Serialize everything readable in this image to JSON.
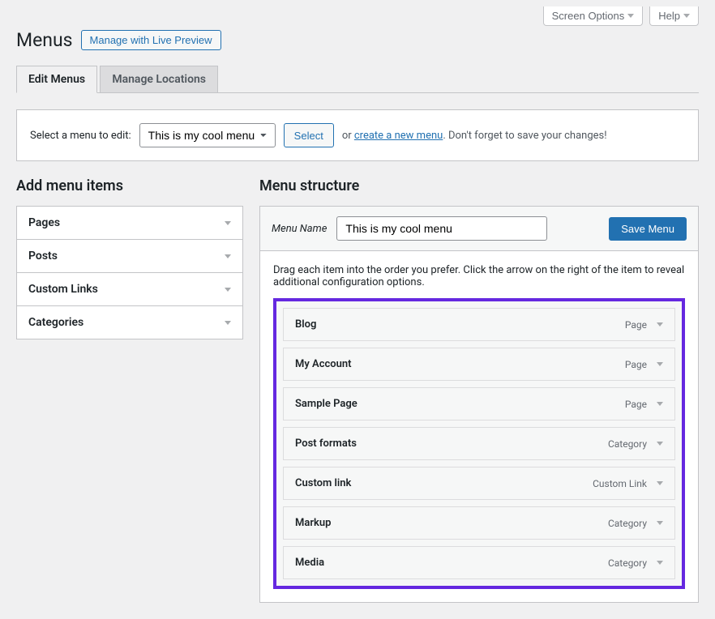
{
  "topbar": {
    "screen_options": "Screen Options",
    "help": "Help"
  },
  "header": {
    "title": "Menus",
    "live_preview_btn": "Manage with Live Preview"
  },
  "tabs": {
    "edit": "Edit Menus",
    "locations": "Manage Locations"
  },
  "selector": {
    "label": "Select a menu to edit:",
    "selected": "This is my cool menu",
    "select_btn": "Select",
    "or": "or",
    "create_link": "create a new menu",
    "suffix": ". Don't forget to save your changes!"
  },
  "left": {
    "heading": "Add menu items",
    "items": [
      "Pages",
      "Posts",
      "Custom Links",
      "Categories"
    ]
  },
  "right": {
    "heading": "Menu structure",
    "name_label": "Menu Name",
    "name_value": "This is my cool menu",
    "save_btn": "Save Menu",
    "drag_hint": "Drag each item into the order you prefer. Click the arrow on the right of the item to reveal additional configuration options.",
    "items": [
      {
        "title": "Blog",
        "type": "Page"
      },
      {
        "title": "My Account",
        "type": "Page"
      },
      {
        "title": "Sample Page",
        "type": "Page"
      },
      {
        "title": "Post formats",
        "type": "Category"
      },
      {
        "title": "Custom link",
        "type": "Custom Link"
      },
      {
        "title": "Markup",
        "type": "Category"
      },
      {
        "title": "Media",
        "type": "Category"
      }
    ]
  },
  "colors": {
    "accent": "#2271b1",
    "highlight_border": "#6528e0",
    "bg": "#f0f0f1",
    "panel_bg": "#ffffff",
    "panel_alt": "#f6f7f7",
    "border": "#c3c4c7",
    "text": "#1d2327",
    "muted": "#646970"
  }
}
